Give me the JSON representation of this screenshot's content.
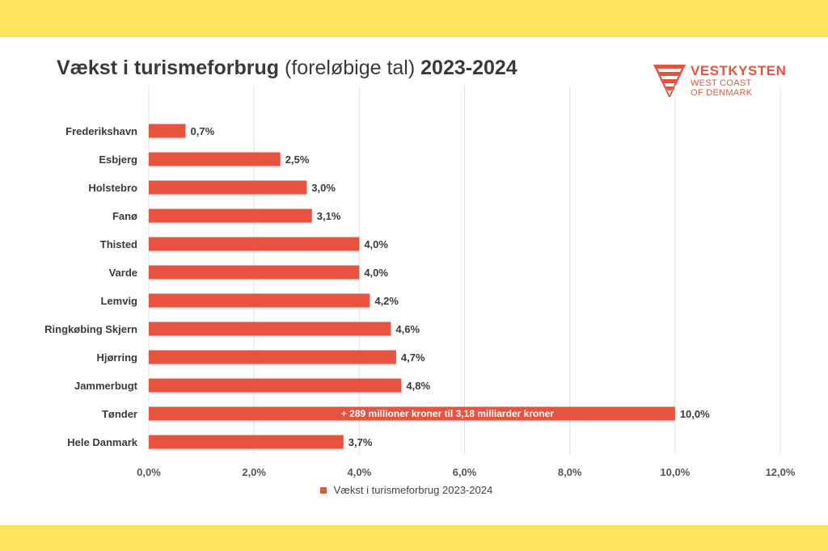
{
  "title": {
    "part1": "Vækst i turismeforbrug",
    "part2": "(foreløbige tal)",
    "part3": "2023-2024"
  },
  "logo": {
    "name": "VESTKYSTEN",
    "line1": "WEST COAST",
    "line2": "OF DENMARK",
    "icon": "v-logo-icon"
  },
  "colors": {
    "bar": "#e8533f",
    "background_band": "#fce45c"
  },
  "chart_data": {
    "type": "bar",
    "orientation": "horizontal",
    "title": "Vækst i turismeforbrug (foreløbige tal) 2023-2024",
    "categories": [
      "Frederikshavn",
      "Esbjerg",
      "Holstebro",
      "Fanø",
      "Thisted",
      "Varde",
      "Lemvig",
      "Ringkøbing Skjern",
      "Hjørring",
      "Jammerbugt",
      "Tønder",
      "Hele Danmark"
    ],
    "series": [
      {
        "name": "Vækst i turismeforbrug 2023-2024",
        "values": [
          0.7,
          2.5,
          3.0,
          3.1,
          4.0,
          4.0,
          4.2,
          4.6,
          4.7,
          4.8,
          10.0,
          3.7
        ],
        "labels": [
          "0,7%",
          "2,5%",
          "3,0%",
          "3,1%",
          "4,0%",
          "4,0%",
          "4,2%",
          "4,6%",
          "4,7%",
          "4,8%",
          "10,0%",
          "3,7%"
        ]
      }
    ],
    "xlim": [
      0,
      12
    ],
    "ticks": [
      0,
      2,
      4,
      6,
      8,
      10,
      12
    ],
    "tick_labels": [
      "0,0%",
      "2,0%",
      "4,0%",
      "6,0%",
      "8,0%",
      "10,0%",
      "12,0%"
    ],
    "grid": true,
    "legend": "bottom",
    "annotation": {
      "category": "Tønder",
      "text": "+ 289 millioner kroner til 3,18 milliarder kroner"
    }
  }
}
